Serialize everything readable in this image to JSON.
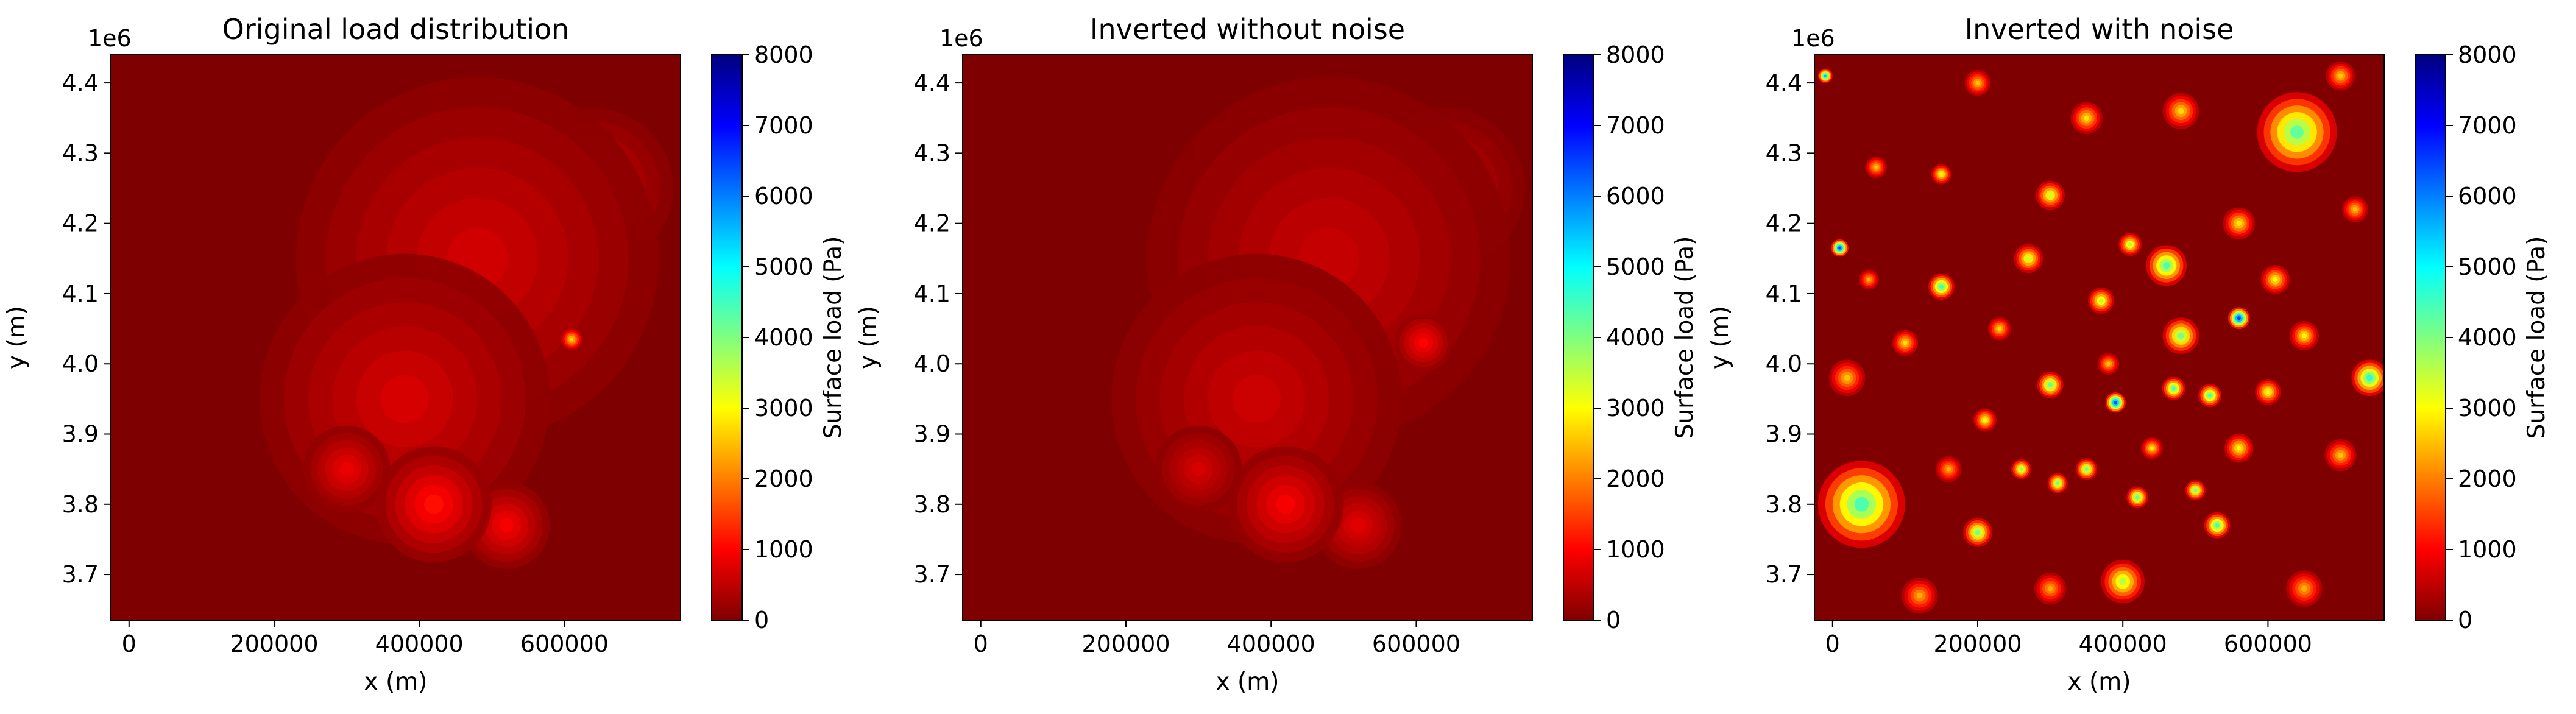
{
  "colormap": {
    "name": "jet_r",
    "stops": [
      "#00007f",
      "#0000ff",
      "#007fff",
      "#00ffff",
      "#7fff7f",
      "#ffff00",
      "#ff7f00",
      "#ff0000",
      "#7f0000"
    ],
    "background_value_color": "#7f0000"
  },
  "chart_data": [
    {
      "type": "heatmap",
      "title": "Original load distribution",
      "xlabel": "x (m)",
      "ylabel": "y (m)",
      "y_offset_label": "1e6",
      "xlim": [
        -25000,
        760000
      ],
      "ylim": [
        3.635,
        4.44
      ],
      "xticks": [
        0,
        200000,
        400000,
        600000
      ],
      "xtick_labels": [
        "0",
        "200000",
        "400000",
        "600000"
      ],
      "yticks": [
        3.7,
        3.8,
        3.9,
        4.0,
        4.1,
        4.2,
        4.3,
        4.4
      ],
      "ytick_labels": [
        "3.7",
        "3.8",
        "3.9",
        "4.0",
        "4.1",
        "4.2",
        "4.3",
        "4.4"
      ],
      "colorbar": {
        "label": "Surface load (Pa)",
        "range": [
          0,
          8000
        ],
        "ticks": [
          0,
          1000,
          2000,
          3000,
          4000,
          5000,
          6000,
          7000,
          8000
        ],
        "tick_labels": [
          "0",
          "1000",
          "2000",
          "3000",
          "4000",
          "5000",
          "6000",
          "7000",
          "8000"
        ]
      },
      "load_features": [
        {
          "x": 380000,
          "y": 3.95,
          "load": 800,
          "spread": 200000
        },
        {
          "x": 480000,
          "y": 4.15,
          "load": 750,
          "spread": 250000
        },
        {
          "x": 420000,
          "y": 3.8,
          "load": 1300,
          "spread": 80000
        },
        {
          "x": 610000,
          "y": 4.035,
          "load": 3200,
          "spread": 15000
        },
        {
          "x": 520000,
          "y": 3.77,
          "load": 1100,
          "spread": 60000
        },
        {
          "x": 300000,
          "y": 3.85,
          "load": 1000,
          "spread": 60000
        },
        {
          "x": 640000,
          "y": 4.25,
          "load": 700,
          "spread": 110000
        }
      ]
    },
    {
      "type": "heatmap",
      "title": "Inverted without noise",
      "xlabel": "x (m)",
      "ylabel": "y (m)",
      "y_offset_label": "1e6",
      "xlim": [
        -25000,
        760000
      ],
      "ylim": [
        3.635,
        4.44
      ],
      "xticks": [
        0,
        200000,
        400000,
        600000
      ],
      "xtick_labels": [
        "0",
        "200000",
        "400000",
        "600000"
      ],
      "yticks": [
        3.7,
        3.8,
        3.9,
        4.0,
        4.1,
        4.2,
        4.3,
        4.4
      ],
      "ytick_labels": [
        "3.7",
        "3.8",
        "3.9",
        "4.0",
        "4.1",
        "4.2",
        "4.3",
        "4.4"
      ],
      "colorbar": {
        "label": "Surface load (Pa)",
        "range": [
          0,
          8000
        ],
        "ticks": [
          0,
          1000,
          2000,
          3000,
          4000,
          5000,
          6000,
          7000,
          8000
        ],
        "tick_labels": [
          "0",
          "1000",
          "2000",
          "3000",
          "4000",
          "5000",
          "6000",
          "7000",
          "8000"
        ]
      },
      "load_features": [
        {
          "x": 380000,
          "y": 3.95,
          "load": 700,
          "spread": 200000
        },
        {
          "x": 480000,
          "y": 4.15,
          "load": 650,
          "spread": 250000
        },
        {
          "x": 420000,
          "y": 3.8,
          "load": 1100,
          "spread": 80000
        },
        {
          "x": 610000,
          "y": 4.03,
          "load": 1200,
          "spread": 40000
        },
        {
          "x": 520000,
          "y": 3.77,
          "load": 900,
          "spread": 60000
        },
        {
          "x": 300000,
          "y": 3.85,
          "load": 800,
          "spread": 60000
        },
        {
          "x": 640000,
          "y": 4.25,
          "load": 600,
          "spread": 110000
        }
      ]
    },
    {
      "type": "heatmap",
      "title": "Inverted with noise",
      "xlabel": "x (m)",
      "ylabel": "y (m)",
      "y_offset_label": "1e6",
      "xlim": [
        -25000,
        760000
      ],
      "ylim": [
        3.635,
        4.44
      ],
      "xticks": [
        0,
        200000,
        400000,
        600000
      ],
      "xtick_labels": [
        "0",
        "200000",
        "400000",
        "600000"
      ],
      "yticks": [
        3.7,
        3.8,
        3.9,
        4.0,
        4.1,
        4.2,
        4.3,
        4.4
      ],
      "ytick_labels": [
        "3.7",
        "3.8",
        "3.9",
        "4.0",
        "4.1",
        "4.2",
        "4.3",
        "4.4"
      ],
      "colorbar": {
        "label": "Surface load (Pa)",
        "range": [
          0,
          8000
        ],
        "ticks": [
          0,
          1000,
          2000,
          3000,
          4000,
          5000,
          6000,
          7000,
          8000
        ],
        "tick_labels": [
          "0",
          "1000",
          "2000",
          "3000",
          "4000",
          "5000",
          "6000",
          "7000",
          "8000"
        ]
      },
      "load_features": [
        {
          "x": 40000,
          "y": 3.8,
          "load": 5200,
          "spread": 60000
        },
        {
          "x": 640000,
          "y": 4.33,
          "load": 5000,
          "spread": 55000
        },
        {
          "x": 560000,
          "y": 4.065,
          "load": 7800,
          "spread": 15000
        },
        {
          "x": 390000,
          "y": 3.945,
          "load": 7500,
          "spread": 14000
        },
        {
          "x": 10000,
          "y": 4.165,
          "load": 7800,
          "spread": 12000
        },
        {
          "x": 740000,
          "y": 3.98,
          "load": 5500,
          "spread": 25000
        },
        {
          "x": 400000,
          "y": 3.69,
          "load": 4200,
          "spread": 30000
        },
        {
          "x": 460000,
          "y": 4.14,
          "load": 5200,
          "spread": 28000
        },
        {
          "x": 480000,
          "y": 4.04,
          "load": 4800,
          "spread": 25000
        },
        {
          "x": 150000,
          "y": 4.11,
          "load": 5300,
          "spread": 18000
        },
        {
          "x": 200000,
          "y": 3.76,
          "load": 4800,
          "spread": 20000
        },
        {
          "x": 530000,
          "y": 3.77,
          "load": 5200,
          "spread": 18000
        },
        {
          "x": 300000,
          "y": 3.97,
          "load": 5000,
          "spread": 18000
        },
        {
          "x": 470000,
          "y": 3.965,
          "load": 5200,
          "spread": 16000
        },
        {
          "x": 520000,
          "y": 3.955,
          "load": 5200,
          "spread": 16000
        },
        {
          "x": 350000,
          "y": 3.85,
          "load": 4800,
          "spread": 15000
        },
        {
          "x": 310000,
          "y": 3.83,
          "load": 4800,
          "spread": 14000
        },
        {
          "x": 420000,
          "y": 3.81,
          "load": 5000,
          "spread": 15000
        },
        {
          "x": 500000,
          "y": 3.82,
          "load": 4800,
          "spread": 14000
        },
        {
          "x": 260000,
          "y": 3.85,
          "load": 4500,
          "spread": 14000
        },
        {
          "x": 370000,
          "y": 4.09,
          "load": 4200,
          "spread": 18000
        },
        {
          "x": 270000,
          "y": 4.15,
          "load": 4000,
          "spread": 20000
        },
        {
          "x": 410000,
          "y": 4.17,
          "load": 4200,
          "spread": 16000
        },
        {
          "x": 300000,
          "y": 4.24,
          "load": 4000,
          "spread": 20000
        },
        {
          "x": -10000,
          "y": 4.41,
          "load": 6500,
          "spread": 10000
        },
        {
          "x": 150000,
          "y": 4.27,
          "load": 3800,
          "spread": 14000
        },
        {
          "x": 560000,
          "y": 3.88,
          "load": 3600,
          "spread": 20000
        },
        {
          "x": 600000,
          "y": 3.96,
          "load": 3800,
          "spread": 18000
        },
        {
          "x": 210000,
          "y": 3.92,
          "load": 3700,
          "spread": 16000
        },
        {
          "x": 650000,
          "y": 4.04,
          "load": 3500,
          "spread": 20000
        },
        {
          "x": 610000,
          "y": 4.12,
          "load": 3600,
          "spread": 20000
        },
        {
          "x": 560000,
          "y": 4.2,
          "load": 3400,
          "spread": 22000
        },
        {
          "x": 350000,
          "y": 4.35,
          "load": 3300,
          "spread": 22000
        },
        {
          "x": 480000,
          "y": 4.36,
          "load": 3200,
          "spread": 25000
        },
        {
          "x": 100000,
          "y": 4.03,
          "load": 3300,
          "spread": 18000
        },
        {
          "x": 60000,
          "y": 4.28,
          "load": 3000,
          "spread": 15000
        },
        {
          "x": 230000,
          "y": 4.05,
          "load": 3200,
          "spread": 16000
        },
        {
          "x": 440000,
          "y": 3.88,
          "load": 3400,
          "spread": 15000
        },
        {
          "x": 700000,
          "y": 3.87,
          "load": 3000,
          "spread": 22000
        },
        {
          "x": 120000,
          "y": 3.67,
          "load": 2800,
          "spread": 25000
        },
        {
          "x": 650000,
          "y": 3.68,
          "load": 2800,
          "spread": 25000
        },
        {
          "x": 300000,
          "y": 3.68,
          "load": 2800,
          "spread": 22000
        },
        {
          "x": 720000,
          "y": 4.22,
          "load": 3000,
          "spread": 18000
        },
        {
          "x": 200000,
          "y": 4.4,
          "load": 3000,
          "spread": 18000
        },
        {
          "x": 700000,
          "y": 4.41,
          "load": 3100,
          "spread": 20000
        },
        {
          "x": 50000,
          "y": 4.12,
          "load": 2800,
          "spread": 14000
        },
        {
          "x": 20000,
          "y": 3.98,
          "load": 3000,
          "spread": 25000
        },
        {
          "x": 380000,
          "y": 4.0,
          "load": 3000,
          "spread": 15000
        },
        {
          "x": 160000,
          "y": 3.85,
          "load": 2800,
          "spread": 18000
        }
      ]
    }
  ]
}
